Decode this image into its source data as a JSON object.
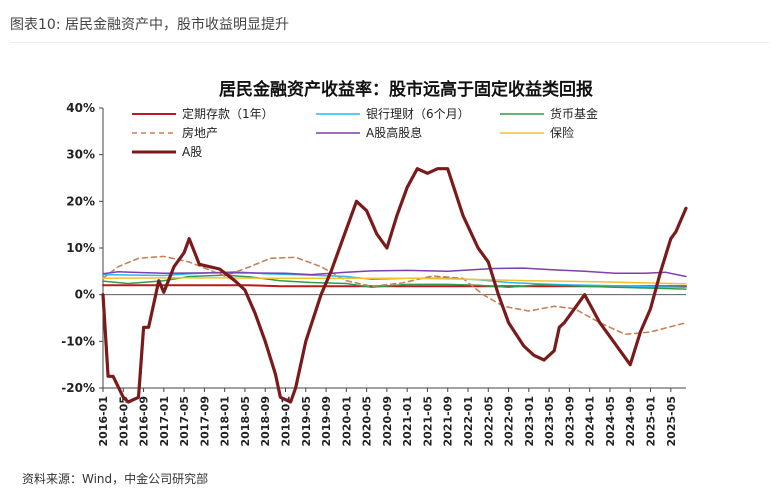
{
  "page": {
    "figure_label": "图表10: 居民金融资产中，股市收益明显提升",
    "source": "资料来源：Wind，中金公司研究部"
  },
  "chart_data": {
    "type": "line",
    "title": "居民金融资产收益率：股市远高于固定收益类回报",
    "xlabel": "",
    "ylabel": "",
    "ylim": [
      -20,
      40
    ],
    "yticks": [
      -20,
      -10,
      0,
      10,
      20,
      30,
      40
    ],
    "ytick_labels": [
      "-20%",
      "-10%",
      "0%",
      "10%",
      "20%",
      "30%",
      "40%"
    ],
    "xlim": [
      "2016-01",
      "2025-08"
    ],
    "xtick_labels": [
      "2016-01",
      "2016-05",
      "2016-09",
      "2017-01",
      "2017-05",
      "2017-09",
      "2018-01",
      "2018-05",
      "2018-09",
      "2019-01",
      "2019-05",
      "2019-09",
      "2020-01",
      "2020-05",
      "2020-09",
      "2021-01",
      "2021-05",
      "2021-09",
      "2022-01",
      "2022-05",
      "2022-09",
      "2023-01",
      "2023-05",
      "2023-09",
      "2024-01",
      "2024-05",
      "2024-09",
      "2025-01",
      "2025-05"
    ],
    "grid": false,
    "legend_position": "top",
    "series": [
      {
        "name": "定期存款（1年）",
        "color": "#b71c1c",
        "width": 2,
        "dash": "",
        "points": [
          [
            "2016-01",
            2.0
          ],
          [
            "2018-06",
            2.0
          ],
          [
            "2018-12",
            1.8
          ],
          [
            "2025-08",
            1.8
          ]
        ]
      },
      {
        "name": "银行理财（6个月）",
        "color": "#29b6f6",
        "width": 1.5,
        "dash": "",
        "points": [
          [
            "2016-01",
            4.3
          ],
          [
            "2017-01",
            4.1
          ],
          [
            "2017-06",
            4.5
          ],
          [
            "2018-03",
            4.9
          ],
          [
            "2018-09",
            4.5
          ],
          [
            "2019-06",
            4.2
          ],
          [
            "2020-01",
            3.9
          ],
          [
            "2020-06",
            3.3
          ],
          [
            "2021-01",
            3.5
          ],
          [
            "2021-09",
            3.5
          ],
          [
            "2022-03",
            3.2
          ],
          [
            "2022-09",
            2.6
          ],
          [
            "2023-03",
            2.3
          ],
          [
            "2023-09",
            2.1
          ],
          [
            "2024-06",
            1.9
          ],
          [
            "2025-01",
            1.7
          ],
          [
            "2025-08",
            1.6
          ]
        ]
      },
      {
        "name": "货币基金",
        "color": "#2e9d4a",
        "width": 1.5,
        "dash": "",
        "points": [
          [
            "2016-01",
            2.9
          ],
          [
            "2016-06",
            2.4
          ],
          [
            "2017-01",
            3.0
          ],
          [
            "2017-06",
            3.9
          ],
          [
            "2018-01",
            4.2
          ],
          [
            "2018-06",
            3.8
          ],
          [
            "2018-12",
            3.0
          ],
          [
            "2019-06",
            2.6
          ],
          [
            "2020-01",
            2.4
          ],
          [
            "2020-06",
            1.6
          ],
          [
            "2021-01",
            2.2
          ],
          [
            "2021-09",
            2.2
          ],
          [
            "2022-03",
            2.0
          ],
          [
            "2022-09",
            1.6
          ],
          [
            "2023-03",
            2.1
          ],
          [
            "2023-09",
            1.9
          ],
          [
            "2024-06",
            1.6
          ],
          [
            "2025-01",
            1.4
          ],
          [
            "2025-08",
            1.2
          ]
        ]
      },
      {
        "name": "房地产",
        "color": "#c8815a",
        "width": 1.6,
        "dash": "5,4",
        "points": [
          [
            "2016-01",
            3.5
          ],
          [
            "2016-04",
            6.0
          ],
          [
            "2016-08",
            7.8
          ],
          [
            "2017-01",
            8.2
          ],
          [
            "2017-06",
            7.0
          ],
          [
            "2018-01",
            4.0
          ],
          [
            "2018-06",
            6.0
          ],
          [
            "2018-10",
            7.8
          ],
          [
            "2019-03",
            8.0
          ],
          [
            "2019-08",
            6.0
          ],
          [
            "2020-01",
            3.0
          ],
          [
            "2020-06",
            1.8
          ],
          [
            "2020-12",
            2.5
          ],
          [
            "2021-06",
            4.0
          ],
          [
            "2021-12",
            3.5
          ],
          [
            "2022-04",
            0.0
          ],
          [
            "2022-08",
            -2.5
          ],
          [
            "2023-01",
            -3.5
          ],
          [
            "2023-06",
            -2.5
          ],
          [
            "2023-10",
            -3.0
          ],
          [
            "2024-03",
            -6.0
          ],
          [
            "2024-08",
            -8.5
          ],
          [
            "2025-01",
            -8.0
          ],
          [
            "2025-08",
            -6.0
          ]
        ]
      },
      {
        "name": "A股高股息",
        "color": "#7e3fb0",
        "width": 1.5,
        "dash": "",
        "points": [
          [
            "2016-01",
            4.5
          ],
          [
            "2016-04",
            4.9
          ],
          [
            "2017-01",
            4.6
          ],
          [
            "2018-01",
            4.7
          ],
          [
            "2019-01",
            4.6
          ],
          [
            "2019-06",
            4.3
          ],
          [
            "2020-01",
            4.8
          ],
          [
            "2020-06",
            5.1
          ],
          [
            "2021-01",
            5.2
          ],
          [
            "2021-09",
            5.0
          ],
          [
            "2022-06",
            5.6
          ],
          [
            "2022-12",
            5.7
          ],
          [
            "2023-06",
            5.3
          ],
          [
            "2023-12",
            5.0
          ],
          [
            "2024-06",
            4.6
          ],
          [
            "2024-12",
            4.6
          ],
          [
            "2025-04",
            4.8
          ],
          [
            "2025-08",
            3.9
          ]
        ]
      },
      {
        "name": "保险",
        "color": "#f2c12e",
        "width": 1.5,
        "dash": "",
        "points": [
          [
            "2016-01",
            3.5
          ],
          [
            "2017-01",
            3.6
          ],
          [
            "2018-01",
            3.6
          ],
          [
            "2019-01",
            3.5
          ],
          [
            "2020-01",
            3.5
          ],
          [
            "2021-01",
            3.5
          ],
          [
            "2022-01",
            3.3
          ],
          [
            "2023-01",
            3.0
          ],
          [
            "2024-01",
            2.8
          ],
          [
            "2025-01",
            2.5
          ],
          [
            "2025-08",
            2.3
          ]
        ]
      },
      {
        "name": "A股",
        "color": "#7b1a1a",
        "width": 3.2,
        "dash": "",
        "points": [
          [
            "2016-01",
            0.0
          ],
          [
            "2016-02",
            -17.5
          ],
          [
            "2016-03",
            -17.5
          ],
          [
            "2016-05",
            -22.0
          ],
          [
            "2016-06",
            -23.0
          ],
          [
            "2016-08",
            -22.0
          ],
          [
            "2016-09",
            -7.0
          ],
          [
            "2016-10",
            -7.0
          ],
          [
            "2016-12",
            3.0
          ],
          [
            "2017-01",
            0.5
          ],
          [
            "2017-03",
            6.0
          ],
          [
            "2017-05",
            9.0
          ],
          [
            "2017-06",
            12.0
          ],
          [
            "2017-08",
            6.5
          ],
          [
            "2017-10",
            6.0
          ],
          [
            "2017-12",
            5.5
          ],
          [
            "2018-03",
            3.0
          ],
          [
            "2018-05",
            1.0
          ],
          [
            "2018-07",
            -4.0
          ],
          [
            "2018-09",
            -10.0
          ],
          [
            "2018-11",
            -17.0
          ],
          [
            "2018-12",
            -22.0
          ],
          [
            "2019-02",
            -23.0
          ],
          [
            "2019-03",
            -20.0
          ],
          [
            "2019-05",
            -10.0
          ],
          [
            "2019-08",
            0.0
          ],
          [
            "2019-10",
            5.0
          ],
          [
            "2020-01",
            14.0
          ],
          [
            "2020-03",
            20.0
          ],
          [
            "2020-05",
            18.0
          ],
          [
            "2020-07",
            13.0
          ],
          [
            "2020-09",
            10.0
          ],
          [
            "2020-11",
            17.0
          ],
          [
            "2021-01",
            23.0
          ],
          [
            "2021-03",
            27.0
          ],
          [
            "2021-05",
            26.0
          ],
          [
            "2021-07",
            27.0
          ],
          [
            "2021-09",
            27.0
          ],
          [
            "2021-12",
            17.0
          ],
          [
            "2022-03",
            10.0
          ],
          [
            "2022-05",
            7.0
          ],
          [
            "2022-07",
            0.0
          ],
          [
            "2022-09",
            -6.0
          ],
          [
            "2022-12",
            -11.0
          ],
          [
            "2023-02",
            -13.0
          ],
          [
            "2023-04",
            -14.0
          ],
          [
            "2023-06",
            -12.0
          ],
          [
            "2023-07",
            -7.0
          ],
          [
            "2023-08",
            -6.0
          ],
          [
            "2023-10",
            -3.0
          ],
          [
            "2023-12",
            0.0
          ],
          [
            "2024-01",
            -2.0
          ],
          [
            "2024-03",
            -6.0
          ],
          [
            "2024-05",
            -9.0
          ],
          [
            "2024-07",
            -12.0
          ],
          [
            "2024-09",
            -15.0
          ],
          [
            "2024-11",
            -8.0
          ],
          [
            "2025-01",
            -3.0
          ],
          [
            "2025-03",
            5.0
          ],
          [
            "2025-05",
            12.0
          ],
          [
            "2025-06",
            13.5
          ],
          [
            "2025-08",
            18.5
          ]
        ]
      }
    ]
  }
}
